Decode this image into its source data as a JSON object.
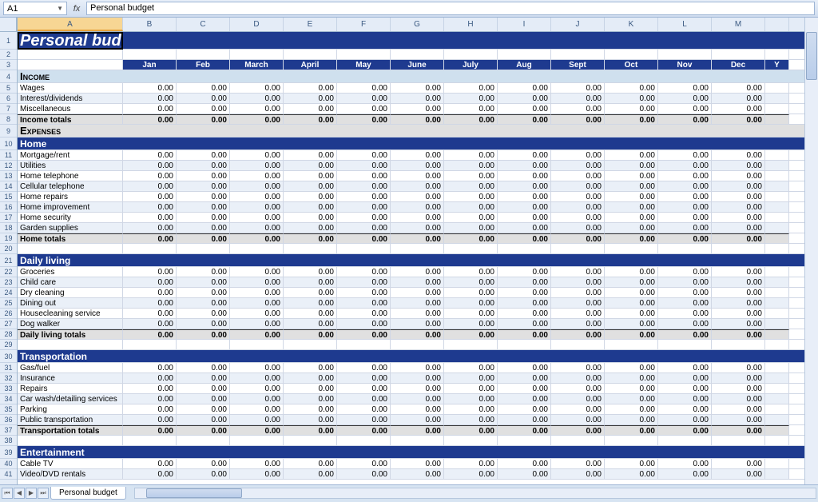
{
  "formula_bar": {
    "cell_ref": "A1",
    "fx_label": "fx",
    "formula_value": "Personal budget"
  },
  "columns": {
    "letters": [
      "A",
      "B",
      "C",
      "D",
      "E",
      "F",
      "G",
      "H",
      "I",
      "J",
      "K",
      "L",
      "M",
      ""
    ],
    "widths": [
      132,
      67,
      67,
      67,
      67,
      67,
      67,
      67,
      67,
      67,
      67,
      67,
      67,
      30
    ],
    "selected_index": 0,
    "header_bg": "#e4ecf7",
    "header_selected_bg": "#f7d694"
  },
  "sheet": {
    "title": "Personal budget",
    "months": [
      "Jan",
      "Feb",
      "March",
      "April",
      "May",
      "June",
      "July",
      "Aug",
      "Sept",
      "Oct",
      "Nov",
      "Dec"
    ],
    "last_col_label": "Y",
    "zero_display": "0.00",
    "bold_zero": "0.00",
    "income_label": "Income",
    "income_rows": [
      "Wages",
      "Interest/dividends",
      "Miscellaneous"
    ],
    "income_total_label": "Income totals",
    "expenses_label": "Expenses",
    "sections": [
      {
        "name": "Home",
        "rows": [
          "Mortgage/rent",
          "Utilities",
          "Home telephone",
          "Cellular telephone",
          "Home repairs",
          "Home improvement",
          "Home security",
          "Garden supplies"
        ],
        "total_label": "Home totals"
      },
      {
        "name": "Daily living",
        "rows": [
          "Groceries",
          "Child care",
          "Dry cleaning",
          "Dining out",
          "Housecleaning service",
          "Dog walker"
        ],
        "total_label": "Daily living totals"
      },
      {
        "name": "Transportation",
        "rows": [
          "Gas/fuel",
          "Insurance",
          "Repairs",
          "Car wash/detailing services",
          "Parking",
          "Public transportation"
        ],
        "total_label": "Transportation totals"
      },
      {
        "name": "Entertainment",
        "rows": [
          "Cable TV",
          "Video/DVD rentals"
        ],
        "total_label": ""
      }
    ]
  },
  "colors": {
    "title_bg": "#1e3a8f",
    "section_bg": "#1e3a8f",
    "income_bg": "#cfe0ee",
    "expenses_bg": "#e0e0e0",
    "alt_row_bg": "#eaf0f8",
    "total_bg": "#e0e0e0",
    "grid_line": "#d0d7e5"
  },
  "tabs": {
    "nav": [
      "⏮",
      "◀",
      "▶",
      "⏭"
    ],
    "sheet_name": "Personal budget"
  }
}
